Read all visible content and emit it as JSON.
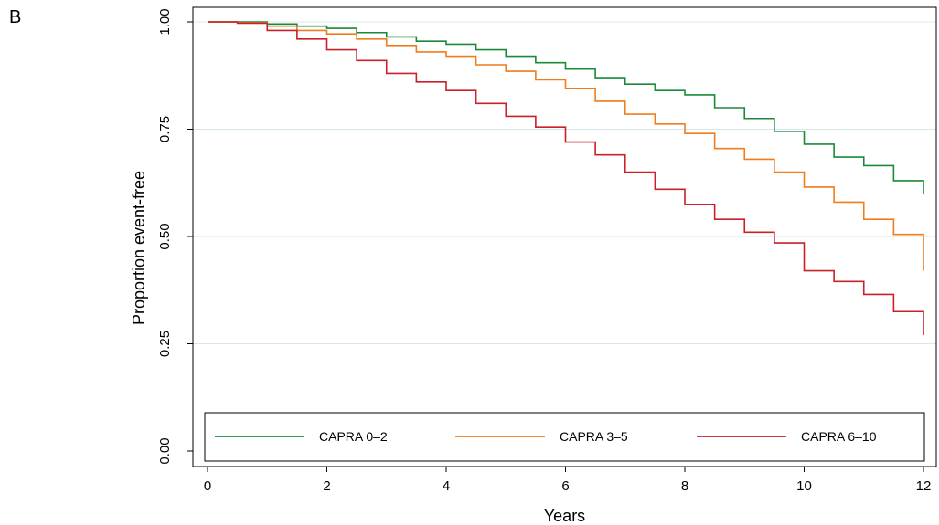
{
  "panel_label": "B",
  "chart_data": {
    "type": "line",
    "title": "",
    "xlabel": "Years",
    "ylabel": "Proportion event-free",
    "xlim": [
      0,
      12
    ],
    "ylim": [
      0,
      1
    ],
    "xticks": [
      0,
      2,
      4,
      6,
      8,
      10,
      12
    ],
    "xtick_labels": [
      "0",
      "2",
      "4",
      "6",
      "8",
      "10",
      "12"
    ],
    "yticks": [
      0,
      0.25,
      0.5,
      0.75,
      1
    ],
    "ytick_labels": [
      "0.00",
      "0.25",
      "0.50",
      "0.75",
      "1.00"
    ],
    "grid": "horizontal",
    "legend_position": "bottom",
    "series": [
      {
        "name": "CAPRA 0–2",
        "color": "#1a8a3a",
        "x": [
          0,
          0.5,
          1,
          1.5,
          2,
          2.5,
          3,
          3.5,
          4,
          4.5,
          5,
          5.5,
          6,
          6.5,
          7,
          7.5,
          8,
          8.5,
          9,
          9.5,
          10,
          10.5,
          11,
          11.5,
          12
        ],
        "y": [
          1.0,
          1.0,
          0.995,
          0.99,
          0.985,
          0.975,
          0.965,
          0.955,
          0.948,
          0.935,
          0.92,
          0.905,
          0.89,
          0.87,
          0.855,
          0.84,
          0.83,
          0.8,
          0.775,
          0.745,
          0.715,
          0.685,
          0.665,
          0.63,
          0.6
        ]
      },
      {
        "name": "CAPRA 3–5",
        "color": "#f07c1c",
        "x": [
          0,
          0.5,
          1,
          1.5,
          2,
          2.5,
          3,
          3.5,
          4,
          4.5,
          5,
          5.5,
          6,
          6.5,
          7,
          7.5,
          8,
          8.5,
          9,
          9.5,
          10,
          10.5,
          11,
          11.5,
          12
        ],
        "y": [
          1.0,
          0.998,
          0.99,
          0.98,
          0.972,
          0.96,
          0.945,
          0.93,
          0.92,
          0.9,
          0.885,
          0.865,
          0.845,
          0.815,
          0.785,
          0.762,
          0.74,
          0.705,
          0.68,
          0.65,
          0.615,
          0.58,
          0.54,
          0.505,
          0.42
        ]
      },
      {
        "name": "CAPRA 6–10",
        "color": "#c9202a",
        "x": [
          0,
          0.5,
          1,
          1.5,
          2,
          2.5,
          3,
          3.5,
          4,
          4.5,
          5,
          5.5,
          6,
          6.5,
          7,
          7.5,
          8,
          8.5,
          9,
          9.5,
          10,
          10.5,
          11,
          11.5,
          12
        ],
        "y": [
          1.0,
          0.997,
          0.98,
          0.96,
          0.935,
          0.91,
          0.88,
          0.86,
          0.84,
          0.81,
          0.78,
          0.755,
          0.72,
          0.69,
          0.65,
          0.61,
          0.575,
          0.54,
          0.51,
          0.485,
          0.42,
          0.395,
          0.365,
          0.325,
          0.27
        ]
      }
    ]
  }
}
